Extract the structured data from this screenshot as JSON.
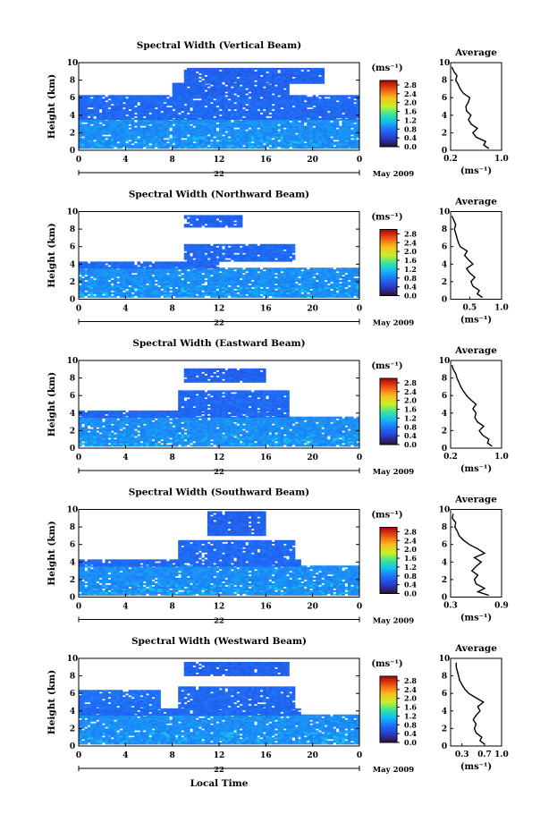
{
  "figure": {
    "date_label": "May 2009",
    "xlabel": "Local Time",
    "day_label": "22"
  },
  "chart_data": [
    {
      "type": "heatmap",
      "title": "Spectral Width (Vertical Beam)",
      "ylabel": "Height (km)",
      "xlim": [
        0,
        24
      ],
      "ylim": [
        0,
        10
      ],
      "xticks": [
        "0",
        "4",
        "8",
        "12",
        "16",
        "20",
        "0"
      ],
      "yticks": [
        "0",
        "2",
        "4",
        "6",
        "8",
        "10"
      ],
      "colorbar": {
        "unit": "(ms⁻¹)",
        "ticks": [
          "0.0",
          "0.4",
          "0.8",
          "1.2",
          "1.6",
          "2.0",
          "2.4",
          "2.8"
        ],
        "range": [
          0,
          3.0
        ]
      },
      "layers": [
        {
          "t0": 0,
          "t1": 24,
          "h0": 0.2,
          "h1": 3.5,
          "level": 0.55
        },
        {
          "t0": 0,
          "t1": 24,
          "h0": 3.5,
          "h1": 6.3,
          "level": 0.35
        },
        {
          "t0": 8,
          "t1": 18,
          "h0": 6.3,
          "h1": 7.6,
          "level": 0.3
        },
        {
          "t0": 9,
          "t1": 21,
          "h0": 7.6,
          "h1": 9.4,
          "level": 0.3
        }
      ],
      "average": {
        "xlim": [
          0.2,
          1.0
        ],
        "xticks": [
          "0.2",
          "1.0"
        ],
        "xlabel": "(ms⁻¹)",
        "title": "Average",
        "heights": [
          0.2,
          0.6,
          1.0,
          1.5,
          2.0,
          2.5,
          3.0,
          3.5,
          4.0,
          4.5,
          5.0,
          5.5,
          6.0,
          6.5,
          7.0,
          7.5,
          8.0,
          8.5,
          9.0,
          9.5
        ],
        "values": [
          0.8,
          0.72,
          0.75,
          0.6,
          0.55,
          0.62,
          0.52,
          0.48,
          0.52,
          0.45,
          0.44,
          0.48,
          0.5,
          0.4,
          0.35,
          0.32,
          0.28,
          0.3,
          0.25,
          0.22
        ]
      }
    },
    {
      "type": "heatmap",
      "title": "Spectral Width (Northward Beam)",
      "ylabel": "Height (km)",
      "xlim": [
        0,
        24
      ],
      "ylim": [
        0,
        10
      ],
      "xticks": [
        "0",
        "4",
        "8",
        "12",
        "16",
        "20",
        "0"
      ],
      "yticks": [
        "0",
        "2",
        "4",
        "6",
        "8",
        "10"
      ],
      "colorbar": {
        "unit": "(ms⁻¹)",
        "ticks": [
          "0.0",
          "0.4",
          "0.8",
          "1.2",
          "1.6",
          "2.0",
          "2.4",
          "2.8"
        ],
        "range": [
          0,
          3.0
        ]
      },
      "layers": [
        {
          "t0": 0,
          "t1": 24,
          "h0": 0.2,
          "h1": 3.5,
          "level": 0.55
        },
        {
          "t0": 0,
          "t1": 12,
          "h0": 3.5,
          "h1": 4.3,
          "level": 0.35
        },
        {
          "t0": 9,
          "t1": 18.5,
          "h0": 4.3,
          "h1": 6.2,
          "level": 0.35
        },
        {
          "t0": 9,
          "t1": 14,
          "h0": 8.2,
          "h1": 9.6,
          "level": 0.3
        }
      ],
      "average": {
        "xlim": [
          0.2,
          1.0
        ],
        "xticks": [
          "0.5",
          "1.0"
        ],
        "xlabel": "(ms⁻¹)",
        "title": "Average",
        "heights": [
          0.2,
          0.6,
          1.0,
          1.5,
          2.0,
          2.5,
          3.0,
          3.5,
          4.0,
          4.5,
          5.0,
          5.5,
          6.0,
          6.5,
          7.0,
          7.5,
          8.0,
          8.5,
          9.0,
          9.5
        ],
        "values": [
          0.7,
          0.62,
          0.65,
          0.55,
          0.52,
          0.58,
          0.5,
          0.45,
          0.55,
          0.48,
          0.42,
          0.46,
          0.35,
          0.32,
          0.3,
          0.28,
          0.26,
          0.28,
          0.25,
          0.22
        ]
      }
    },
    {
      "type": "heatmap",
      "title": "Spectral Width (Eastward Beam)",
      "ylabel": "Height (km)",
      "xlim": [
        0,
        24
      ],
      "ylim": [
        0,
        10
      ],
      "xticks": [
        "0",
        "4",
        "8",
        "12",
        "16",
        "20",
        "0"
      ],
      "yticks": [
        "0",
        "2",
        "4",
        "6",
        "8",
        "10"
      ],
      "colorbar": {
        "unit": "(ms⁻¹)",
        "ticks": [
          "0.0",
          "0.4",
          "0.8",
          "1.2",
          "1.6",
          "2.0",
          "2.4",
          "2.8"
        ],
        "range": [
          0,
          3.0
        ]
      },
      "layers": [
        {
          "t0": 0,
          "t1": 24,
          "h0": 0.2,
          "h1": 3.5,
          "level": 0.55
        },
        {
          "t0": 0,
          "t1": 18,
          "h0": 3.5,
          "h1": 4.2,
          "level": 0.35
        },
        {
          "t0": 8.5,
          "t1": 18,
          "h0": 4.2,
          "h1": 6.5,
          "level": 0.35
        },
        {
          "t0": 9,
          "t1": 16,
          "h0": 7.5,
          "h1": 9.0,
          "level": 0.3
        }
      ],
      "average": {
        "xlim": [
          0.2,
          1.0
        ],
        "xticks": [
          "0.2",
          "1.0"
        ],
        "xlabel": "(ms⁻¹)",
        "title": "Average",
        "heights": [
          0.2,
          0.6,
          1.0,
          1.5,
          2.0,
          2.5,
          3.0,
          3.5,
          4.0,
          4.5,
          5.0,
          5.5,
          6.0,
          6.5,
          7.0,
          7.5,
          8.0,
          8.5,
          9.0,
          9.5
        ],
        "values": [
          0.85,
          0.78,
          0.8,
          0.7,
          0.65,
          0.72,
          0.62,
          0.58,
          0.6,
          0.55,
          0.6,
          0.52,
          0.45,
          0.4,
          0.36,
          0.33,
          0.3,
          0.28,
          0.24,
          0.22
        ]
      }
    },
    {
      "type": "heatmap",
      "title": "Spectral Width (Southward Beam)",
      "ylabel": "Height (km)",
      "xlim": [
        0,
        24
      ],
      "ylim": [
        0,
        10
      ],
      "xticks": [
        "0",
        "4",
        "8",
        "12",
        "16",
        "20",
        "0"
      ],
      "yticks": [
        "0",
        "2",
        "4",
        "6",
        "8",
        "10"
      ],
      "colorbar": {
        "unit": "(ms⁻¹)",
        "ticks": [
          "0.0",
          "0.4",
          "0.8",
          "1.2",
          "1.6",
          "2.0",
          "2.4",
          "2.8"
        ],
        "range": [
          0,
          3.0
        ]
      },
      "layers": [
        {
          "t0": 0,
          "t1": 24,
          "h0": 0.2,
          "h1": 3.5,
          "level": 0.55
        },
        {
          "t0": 0,
          "t1": 19,
          "h0": 3.5,
          "h1": 4.3,
          "level": 0.35
        },
        {
          "t0": 8.5,
          "t1": 18.5,
          "h0": 4.3,
          "h1": 6.5,
          "level": 0.35
        },
        {
          "t0": 11,
          "t1": 16,
          "h0": 7.0,
          "h1": 9.8,
          "level": 0.3
        }
      ],
      "average": {
        "xlim": [
          0.3,
          0.9
        ],
        "xticks": [
          "0.3",
          "0.9"
        ],
        "xlabel": "(ms⁻¹)",
        "title": "Average",
        "heights": [
          0.2,
          0.6,
          1.0,
          1.5,
          2.0,
          2.5,
          3.0,
          3.5,
          4.0,
          4.5,
          5.0,
          5.5,
          6.0,
          6.5,
          7.0,
          7.5,
          8.0,
          8.5,
          9.0,
          9.5
        ],
        "values": [
          0.75,
          0.62,
          0.7,
          0.6,
          0.58,
          0.62,
          0.55,
          0.6,
          0.66,
          0.58,
          0.7,
          0.62,
          0.52,
          0.45,
          0.4,
          0.38,
          0.35,
          0.36,
          0.32,
          0.33
        ]
      }
    },
    {
      "type": "heatmap",
      "title": "Spectral Width (Westward Beam)",
      "ylabel": "Height (km)",
      "xlim": [
        0,
        24
      ],
      "ylim": [
        0,
        10
      ],
      "xticks": [
        "0",
        "4",
        "8",
        "12",
        "16",
        "20",
        "0"
      ],
      "yticks": [
        "0",
        "2",
        "4",
        "6",
        "8",
        "10"
      ],
      "colorbar": {
        "unit": "(ms⁻¹)",
        "ticks": [
          "0.0",
          "0.4",
          "0.8",
          "1.2",
          "1.6",
          "2.0",
          "2.4",
          "2.8"
        ],
        "range": [
          0,
          3.0
        ]
      },
      "layers": [
        {
          "t0": 0,
          "t1": 24,
          "h0": 0.2,
          "h1": 3.5,
          "level": 0.55
        },
        {
          "t0": 0,
          "t1": 19,
          "h0": 3.5,
          "h1": 4.2,
          "level": 0.35
        },
        {
          "t0": 8.5,
          "t1": 18.5,
          "h0": 4.2,
          "h1": 6.7,
          "level": 0.35
        },
        {
          "t0": 0,
          "t1": 7,
          "h0": 4.2,
          "h1": 6.3,
          "level": 0.4
        },
        {
          "t0": 9,
          "t1": 18,
          "h0": 8.0,
          "h1": 9.5,
          "level": 0.3
        }
      ],
      "average": {
        "xlim": [
          0.1,
          1.0
        ],
        "xticks": [
          "0.3",
          "0.7",
          "1.0"
        ],
        "xlabel": "(ms⁻¹)",
        "title": "Average",
        "heights": [
          0.2,
          0.6,
          1.0,
          1.5,
          2.0,
          2.5,
          3.0,
          3.5,
          4.0,
          4.5,
          5.0,
          5.5,
          6.0,
          6.5,
          7.0,
          7.5,
          8.0,
          8.5,
          9.0,
          9.5
        ],
        "values": [
          0.7,
          0.62,
          0.65,
          0.55,
          0.52,
          0.55,
          0.5,
          0.55,
          0.62,
          0.58,
          0.68,
          0.55,
          0.42,
          0.35,
          0.3,
          0.26,
          0.24,
          0.22,
          0.2,
          0.2
        ]
      }
    }
  ]
}
